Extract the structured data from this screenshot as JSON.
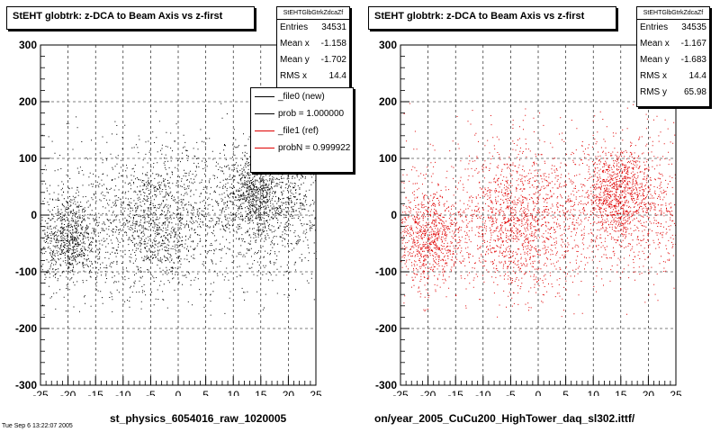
{
  "colors": {
    "left_points": "#000000",
    "right_points": "#e00000",
    "axis": "#000000",
    "grid": "#000000"
  },
  "left": {
    "title": "StEHT globtrk: z-DCA to Beam Axis vs z-first",
    "stats": {
      "header": "StEHTGlbGtrkZdcaZf",
      "rows": [
        {
          "label": "Entries",
          "value": "34531"
        },
        {
          "label": "Mean x",
          "value": "-1.158"
        },
        {
          "label": "Mean y",
          "value": "-1.702"
        },
        {
          "label": "RMS x",
          "value": "14.4"
        }
      ]
    },
    "xaxis_title": "st_physics_6054016_raw_1020005"
  },
  "right": {
    "title": "StEHT globtrk: z-DCA to Beam Axis vs z-first",
    "stats": {
      "header": "StEHTGlbGtrkZdcaZf",
      "rows": [
        {
          "label": "Entries",
          "value": "34535"
        },
        {
          "label": "Mean x",
          "value": "-1.167"
        },
        {
          "label": "Mean y",
          "value": "-1.683"
        },
        {
          "label": "RMS x",
          "value": "14.4"
        },
        {
          "label": "RMS y",
          "value": "65.98"
        }
      ]
    },
    "xaxis_title": "on/year_2005_CuCu200_HighTower_daq_sl302.ittf/"
  },
  "legend": {
    "entries": [
      {
        "label": "_file0 (new)",
        "color": "#000000"
      },
      {
        "label": "prob = 1.000000",
        "color": "#000000"
      },
      {
        "label": "_file1 (ref)",
        "color": "#e00000"
      },
      {
        "label": "probN = 0.999922",
        "color": "#e00000"
      }
    ]
  },
  "footer": "Tue Sep 6 13:22:07 2005",
  "chart_data": [
    {
      "type": "scatter",
      "title": "StEHT globtrk: z-DCA to Beam Axis vs z-first",
      "xlabel": "st_physics_6054016_raw_1020005",
      "ylabel": "",
      "xlim": [
        -25,
        25
      ],
      "ylim": [
        -300,
        300
      ],
      "xticks": [
        -25,
        -20,
        -15,
        -10,
        -5,
        0,
        5,
        10,
        15,
        20,
        25
      ],
      "yticks": [
        -300,
        -200,
        -100,
        0,
        100,
        200,
        300
      ],
      "grid": true,
      "entries": 34531,
      "mean_x": -1.158,
      "mean_y": -1.702,
      "rms_x": 14.4,
      "clusters": [
        {
          "x": -20,
          "y": -40,
          "sx": 3,
          "sy": 40,
          "weight": 0.2
        },
        {
          "x": -4,
          "y": -20,
          "sx": 5,
          "sy": 55,
          "weight": 0.18
        },
        {
          "x": 14,
          "y": 40,
          "sx": 3,
          "sy": 40,
          "weight": 0.2
        },
        {
          "x": 20,
          "y": 20,
          "sx": 4,
          "sy": 60,
          "weight": 0.1
        },
        {
          "x": 0,
          "y": 0,
          "sx": 14,
          "sy": 75,
          "weight": 0.32
        }
      ],
      "color": "#000000"
    },
    {
      "type": "scatter",
      "title": "StEHT globtrk: z-DCA to Beam Axis vs z-first",
      "xlabel": "on/year_2005_CuCu200_HighTower_daq_sl302.ittf/",
      "ylabel": "",
      "xlim": [
        -25,
        25
      ],
      "ylim": [
        -300,
        300
      ],
      "xticks": [
        -25,
        -20,
        -15,
        -10,
        -5,
        0,
        5,
        10,
        15,
        20,
        25
      ],
      "yticks": [
        -300,
        -200,
        -100,
        0,
        100,
        200,
        300
      ],
      "grid": true,
      "entries": 34535,
      "mean_x": -1.167,
      "mean_y": -1.683,
      "rms_x": 14.4,
      "rms_y": 65.98,
      "clusters": [
        {
          "x": -20,
          "y": -40,
          "sx": 3,
          "sy": 40,
          "weight": 0.2
        },
        {
          "x": -4,
          "y": -20,
          "sx": 5,
          "sy": 55,
          "weight": 0.18
        },
        {
          "x": 14,
          "y": 40,
          "sx": 3,
          "sy": 40,
          "weight": 0.2
        },
        {
          "x": 20,
          "y": 20,
          "sx": 4,
          "sy": 60,
          "weight": 0.1
        },
        {
          "x": 0,
          "y": 0,
          "sx": 14,
          "sy": 75,
          "weight": 0.32
        }
      ],
      "color": "#e00000"
    }
  ]
}
